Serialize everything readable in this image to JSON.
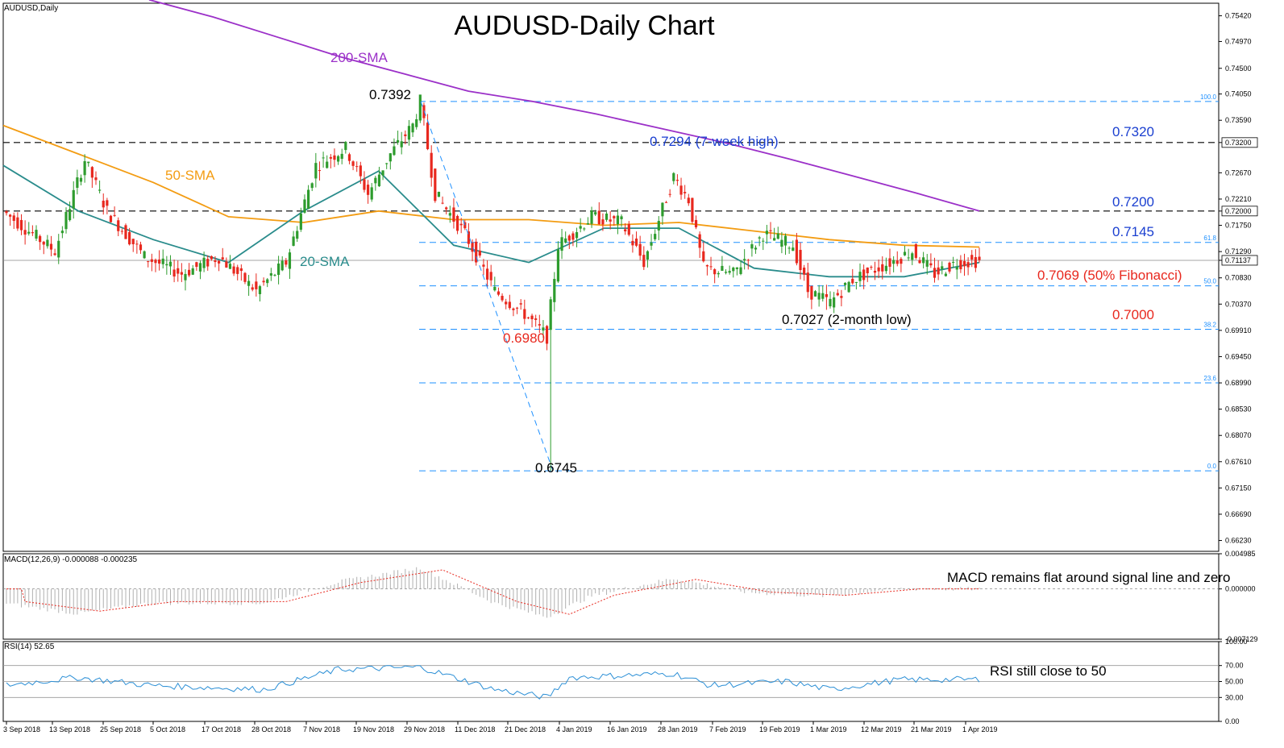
{
  "symbol_label": "AUDUSD,Daily",
  "title": "AUDUSD-Daily Chart",
  "colors": {
    "bull": "#2e9c2e",
    "bear": "#e8281e",
    "sma20": "#2a8c8c",
    "sma50": "#f39c12",
    "sma200": "#9b30c8",
    "fib": "#1e90ff",
    "level": "#000000",
    "macd_hist": "#b0b0b0",
    "macd_signal": "#e8281e",
    "rsi": "#2b8fd6"
  },
  "price_axis": {
    "ticks": [
      "0.75420",
      "0.74970",
      "0.74500",
      "0.74050",
      "0.73590",
      "0.73200",
      "0.72670",
      "0.72210",
      "0.72000",
      "0.71750",
      "0.71290",
      "0.71137",
      "0.70830",
      "0.70370",
      "0.69910",
      "0.69450",
      "0.68990",
      "0.68530",
      "0.68070",
      "0.67610",
      "0.67150",
      "0.66690",
      "0.66230"
    ],
    "highlighted": [
      "0.73200",
      "0.72000",
      "0.71137"
    ]
  },
  "dates": [
    "3 Sep 2018",
    "13 Sep 2018",
    "25 Sep 2018",
    "5 Oct 2018",
    "17 Oct 2018",
    "28 Oct 2018",
    "7 Nov 2018",
    "19 Nov 2018",
    "29 Nov 2018",
    "11 Dec 2018",
    "21 Dec 2018",
    "4 Jan 2019",
    "16 Jan 2019",
    "28 Jan 2019",
    "7 Feb 2019",
    "19 Feb 2019",
    "1 Mar 2019",
    "12 Mar 2019",
    "21 Mar 2019",
    "1 Apr 2019"
  ],
  "fib_levels": [
    {
      "label": "100.0",
      "price": 0.7392
    },
    {
      "label": "61.8",
      "price": 0.7145
    },
    {
      "label": "50.0",
      "price": 0.7069
    },
    {
      "label": "38.2",
      "price": 0.6993
    },
    {
      "label": "23.6",
      "price": 0.6899
    },
    {
      "label": "0.0",
      "price": 0.6745
    }
  ],
  "horizontal_levels": [
    0.732,
    0.72
  ],
  "current_price": 0.71137,
  "annotations": {
    "sma200": "200-SMA",
    "sma50": "50-SMA",
    "sma20": "20-SMA",
    "high": "0.7392",
    "seven_week": "0.7294 (7-week high)",
    "r1": "0.7320",
    "r2": "0.7200",
    "r3": "0.7145",
    "fib50": "0.7069 (50% Fibonacci)",
    "s1": "0.7000",
    "s_low": "0.6980",
    "two_month": "0.7027 (2-month low)",
    "low": "0.6745"
  },
  "macd": {
    "header": "MACD(12,26,9) -0.000088 -0.000235",
    "ticks": [
      "0.004985",
      "0.000000",
      "-0.007129"
    ],
    "comment": "MACD remains flat around signal line and zero"
  },
  "rsi": {
    "header": "RSI(14) 52.65",
    "ticks": [
      "100.00",
      "70.00",
      "50.00",
      "30.00",
      "0.00"
    ],
    "comment": "RSI still close to 50"
  },
  "chart_data": {
    "type": "candlestick",
    "title": "AUDUSD-Daily Chart",
    "x_range": [
      "3 Sep 2018",
      "3 Apr 2019"
    ],
    "ylim": [
      0.6604,
      0.7564
    ],
    "ohlc_samples": [
      {
        "date": "29 Nov 2018",
        "high": 0.7392
      },
      {
        "date": "2 Jan 2019",
        "low": 0.6745
      },
      {
        "date": "31 Jan 2019",
        "high": 0.7294
      },
      {
        "date": "7 Mar 2019",
        "low": 0.7027
      }
    ],
    "series": [
      {
        "name": "200-SMA",
        "values": [
          0.757,
          0.754,
          0.7505,
          0.747,
          0.744,
          0.741,
          0.7392,
          0.737,
          0.7345,
          0.732,
          0.7292,
          0.7262,
          0.7232,
          0.72
        ]
      },
      {
        "name": "50-SMA",
        "values": [
          0.735,
          0.73,
          0.725,
          0.719,
          0.718,
          0.72,
          0.7185,
          0.7185,
          0.7175,
          0.718,
          0.7165,
          0.715,
          0.714,
          0.7137
        ]
      },
      {
        "name": "20-SMA",
        "values": [
          0.728,
          0.72,
          0.715,
          0.711,
          0.72,
          0.727,
          0.714,
          0.711,
          0.717,
          0.717,
          0.71,
          0.7085,
          0.7085,
          0.711
        ]
      }
    ],
    "indicators": {
      "macd": {
        "main": -8.8e-05,
        "signal": -0.000235
      },
      "rsi": {
        "value": 52.65
      }
    }
  }
}
